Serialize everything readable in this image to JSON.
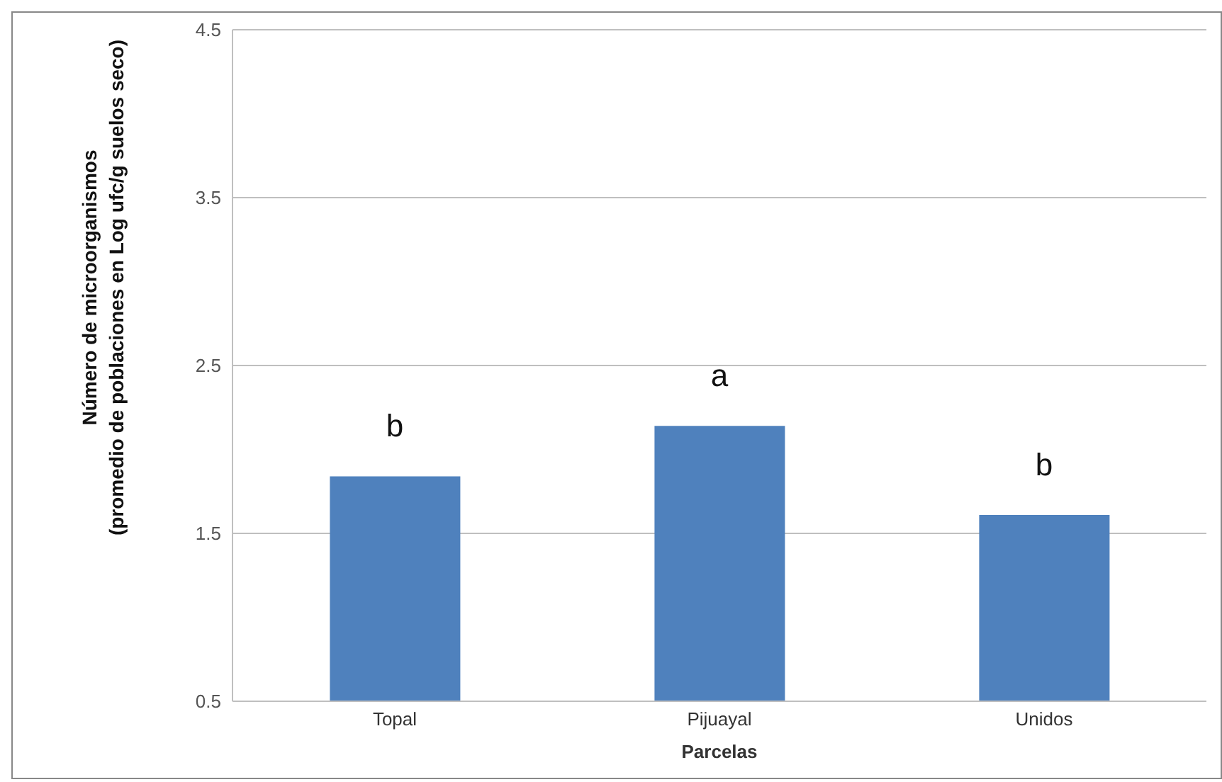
{
  "chart_data": {
    "type": "bar",
    "xlabel": "Parcelas",
    "ylabel": "Número de microorganismos\n(promedio de poblaciones  en Log ufc/g suelos seco)",
    "categories": [
      "Topal",
      "Pijuayal",
      "Unidos"
    ],
    "values": [
      1.84,
      2.14,
      1.61
    ],
    "color": "#4f81bd",
    "ylim": [
      0.5,
      4.5
    ],
    "yticks": [
      0.5,
      1.5,
      2.5,
      3.5,
      4.5
    ],
    "grid": "y",
    "legend": false,
    "annotations": [
      "b",
      "a",
      "b"
    ]
  }
}
